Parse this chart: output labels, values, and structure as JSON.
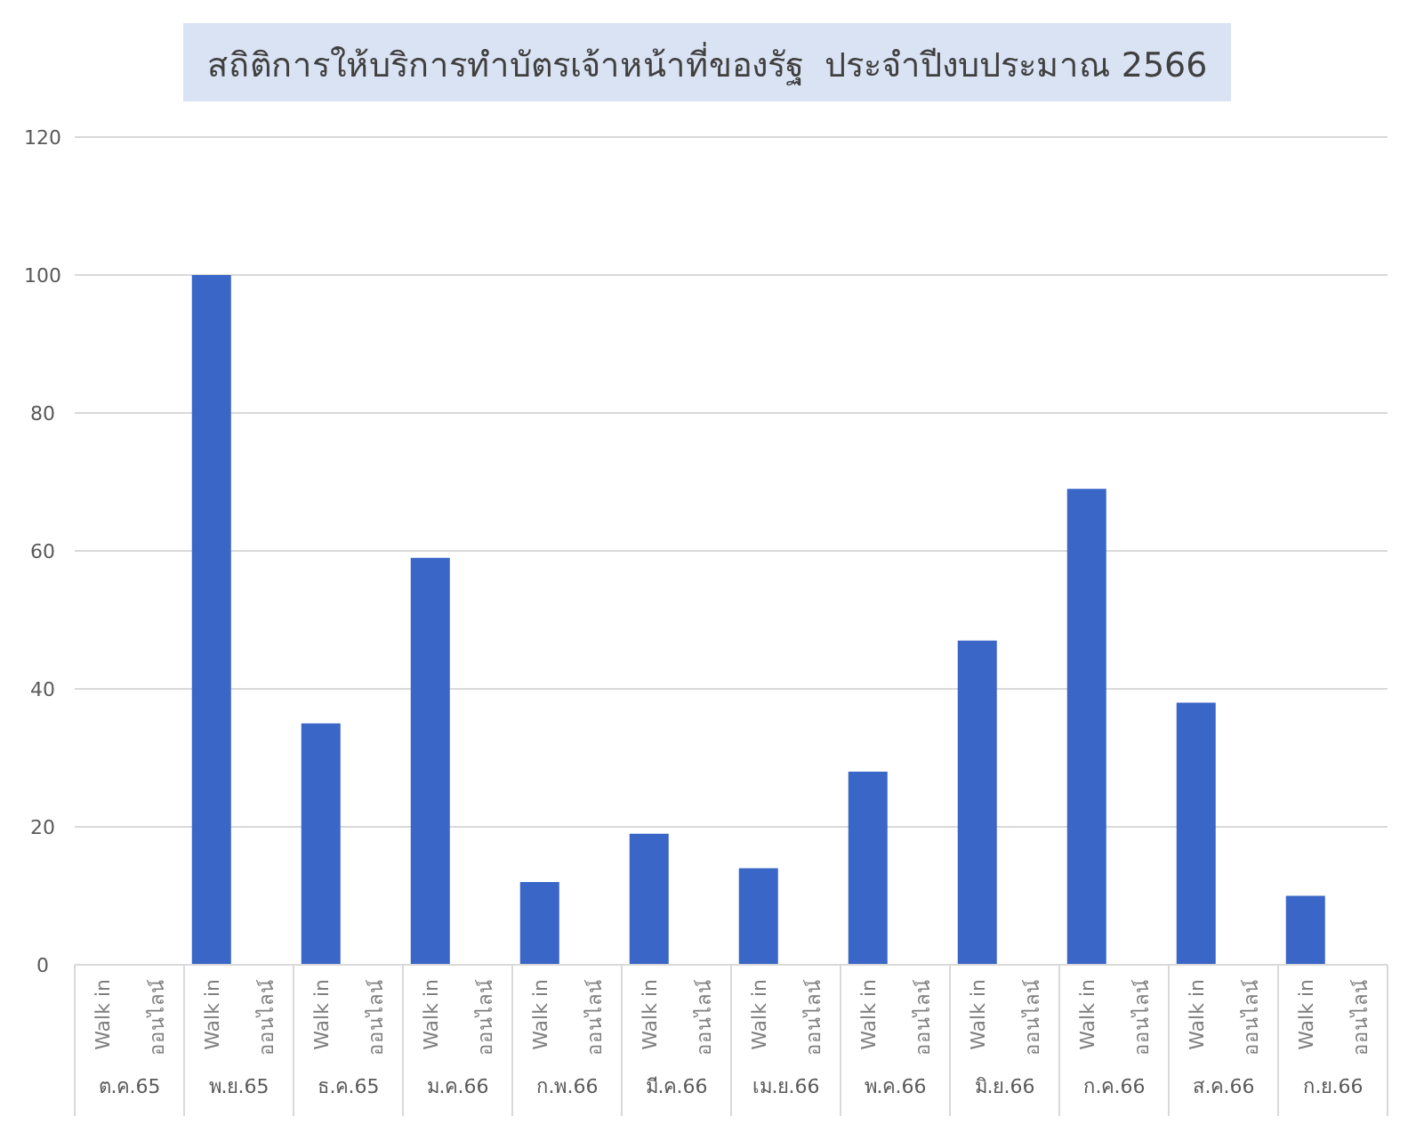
{
  "chart_data": {
    "type": "bar",
    "title": "สถิติการให้บริการทำบัตรเจ้าหน้าที่ของรัฐ  ประจำปีงบประมาณ 2566",
    "categories": [
      "ต.ค.65",
      "พ.ย.65",
      "ธ.ค.65",
      "ม.ค.66",
      "ก.พ.66",
      "มี.ค.66",
      "เม.ย.66",
      "พ.ค.66",
      "มิ.ย.66",
      "ก.ค.66",
      "ส.ค.66",
      "ก.ย.66"
    ],
    "series": [
      {
        "name": "Walk in",
        "color": "#3a66c8",
        "values": [
          0,
          100,
          35,
          59,
          12,
          19,
          14,
          28,
          47,
          69,
          38,
          10
        ]
      },
      {
        "name": "ออนไลน์",
        "values": [
          0,
          0,
          0,
          0,
          0,
          0,
          0,
          0,
          0,
          0,
          0,
          0
        ]
      }
    ],
    "ylim": [
      0,
      120
    ],
    "yticks": [
      0,
      20,
      40,
      60,
      80,
      100,
      120
    ],
    "grid": "y"
  }
}
